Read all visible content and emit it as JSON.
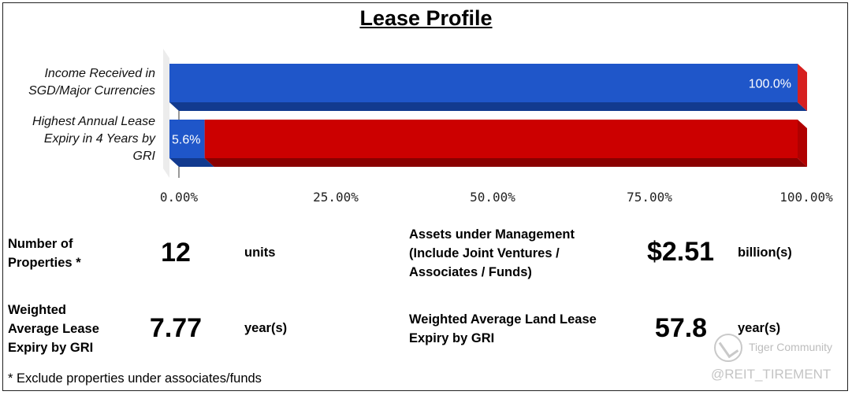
{
  "title": "Lease Profile",
  "chart_data": {
    "type": "bar",
    "orientation": "horizontal",
    "stacked": true,
    "categories": [
      "Income Received in SGD/Major Currencies",
      "Highest Annual Lease Expiry in 4 Years by GRI"
    ],
    "series": [
      {
        "values": [
          100.0,
          5.6
        ],
        "data_labels": [
          "100.0%",
          "5.6%"
        ],
        "color": "#1f56c9",
        "side_color": "#123a8f"
      },
      {
        "values": [
          0.0,
          94.4
        ],
        "color": "#cc0000",
        "side_color": "#8a0000"
      }
    ],
    "xlim": [
      0,
      100
    ],
    "x_ticks": [
      "0.00%",
      "25.00%",
      "50.00%",
      "75.00%",
      "100.00%"
    ],
    "grid": false,
    "legend": "none"
  },
  "category_labels": [
    "Income Received in\nSGD/Major Currencies",
    "Highest Annual Lease\nExpiry in 4 Years by\nGRI"
  ],
  "metrics": {
    "properties": {
      "label": "Number of\nProperties *",
      "value": "12",
      "unit": "units"
    },
    "aum": {
      "label": "Assets under Management\n(Include Joint Ventures /\nAssociates / Funds)",
      "value": "$2.51",
      "unit": "billion(s)"
    },
    "wale": {
      "label": "Weighted\nAverage Lease\nExpiry by GRI",
      "value": "7.77",
      "unit": "year(s)"
    },
    "land_lease": {
      "label": "Weighted Average Land Lease\nExpiry by GRI",
      "value": "57.8",
      "unit": "year(s)"
    }
  },
  "footnote": "* Exclude properties under associates/funds",
  "watermark": {
    "brand": "Tiger Community",
    "handle": "@REIT_TIREMENT",
    "icon": "tiger-logo-icon"
  }
}
